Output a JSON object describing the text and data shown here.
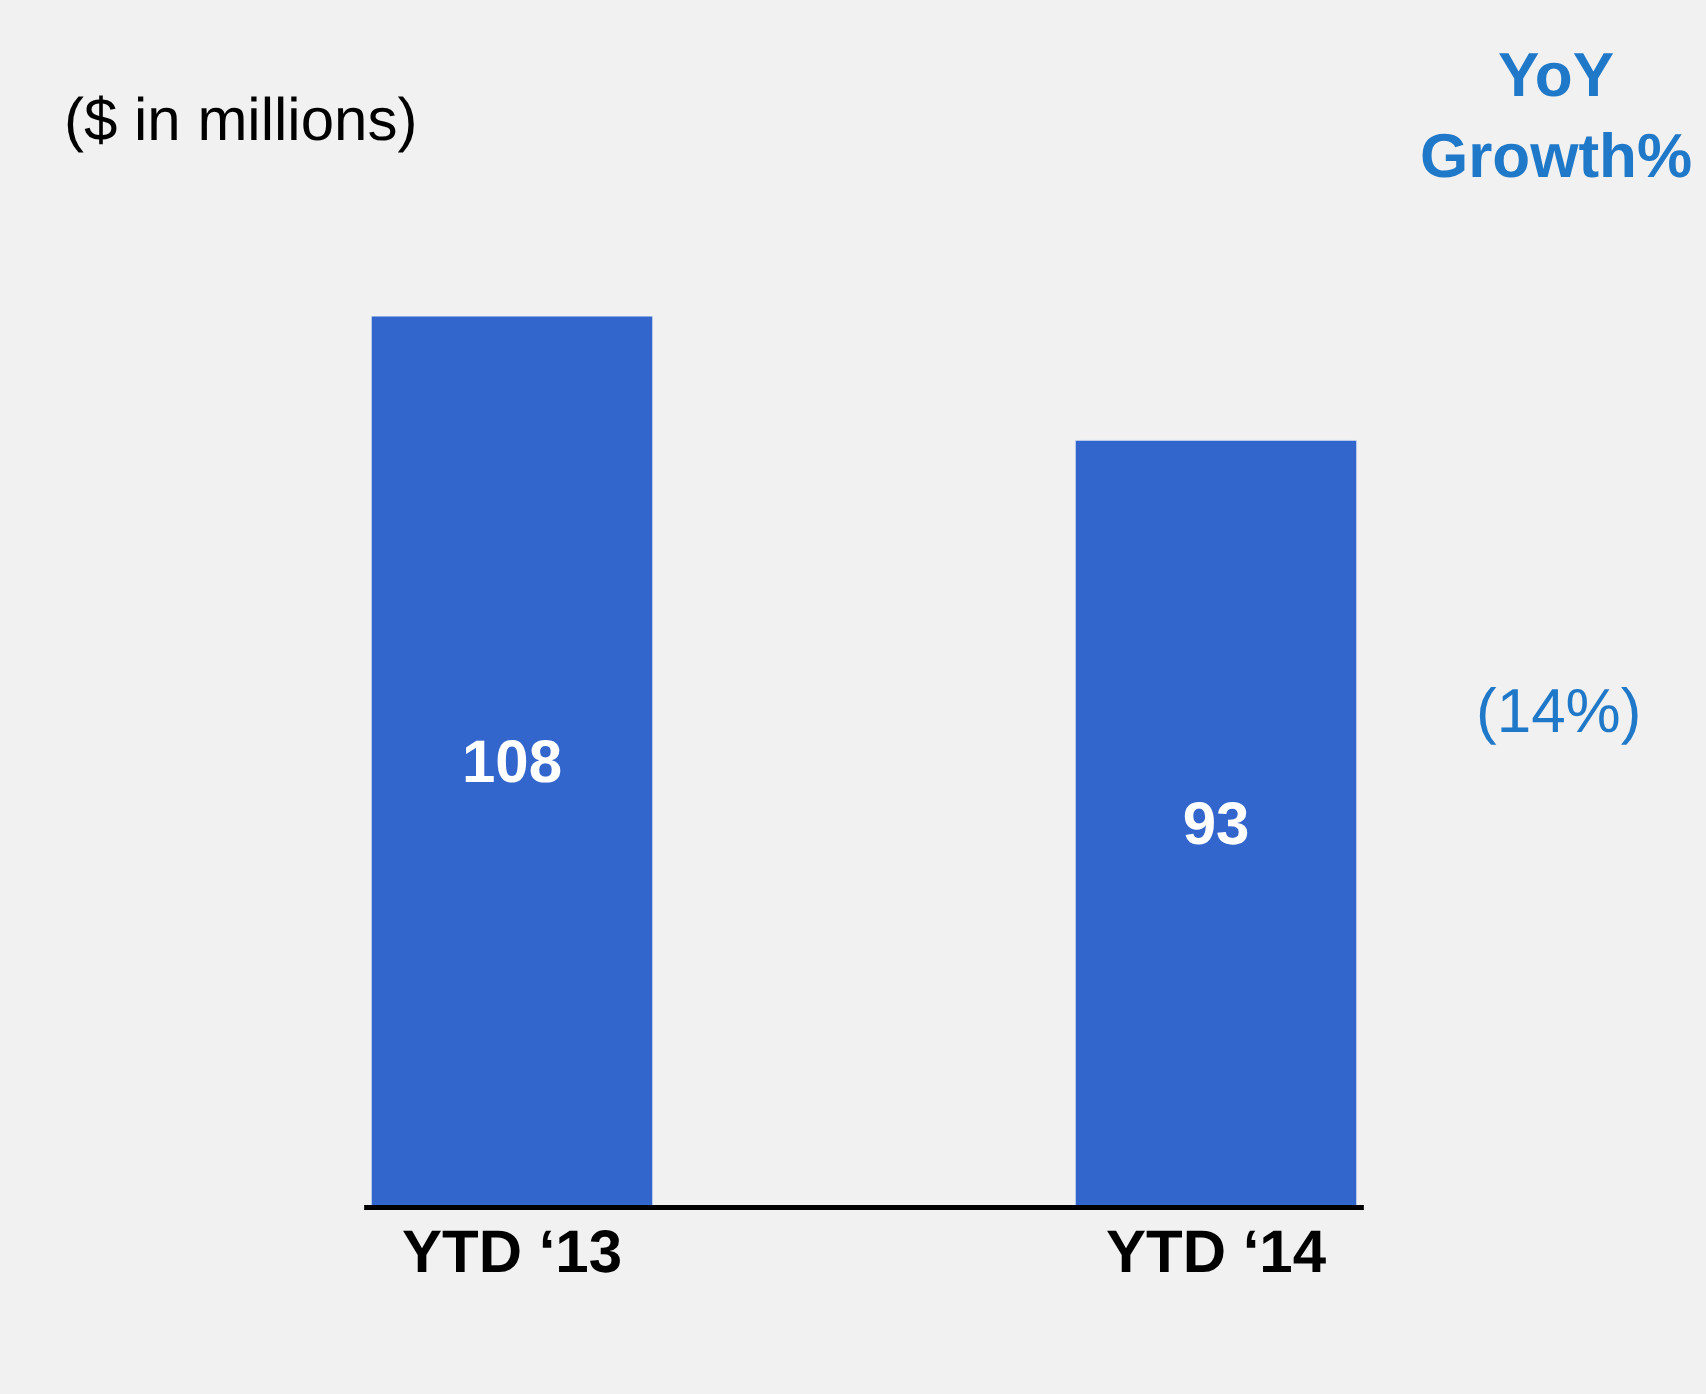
{
  "chart_data": {
    "type": "bar",
    "categories": [
      "YTD ‘13",
      "YTD ‘14"
    ],
    "values": [
      108,
      93
    ],
    "color": "#3366cc",
    "data_labels": true,
    "annotations": [
      "($ in millions)",
      "YoY Growth%",
      "(14%)"
    ]
  }
}
